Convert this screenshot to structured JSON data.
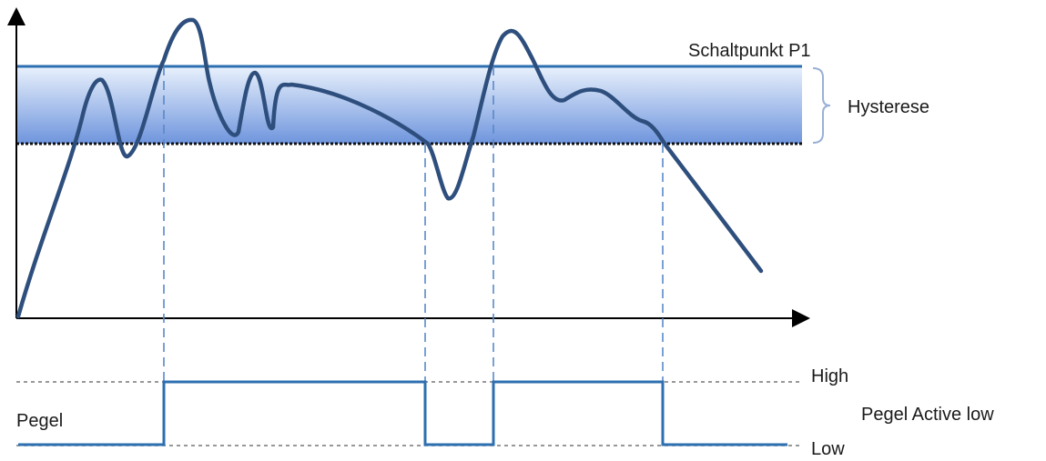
{
  "labels": {
    "setpoint": "Schaltpunkt P1",
    "hysteresis": "Hysterese",
    "signal_level": "Pegel",
    "level_high": "High",
    "level_low": "Low",
    "mode": "Pegel Active low"
  },
  "colors": {
    "curve": "#2e4f7d",
    "setpoint_line": "#2d6fb0",
    "band_top": "#e9f1fc",
    "band_bottom": "#6f95dd",
    "switch_signal": "#2d6fb0",
    "guide_line": "#5a88c9",
    "axis": "#000000",
    "level_reference": "#777777",
    "brace": "#9ab0d6"
  }
}
